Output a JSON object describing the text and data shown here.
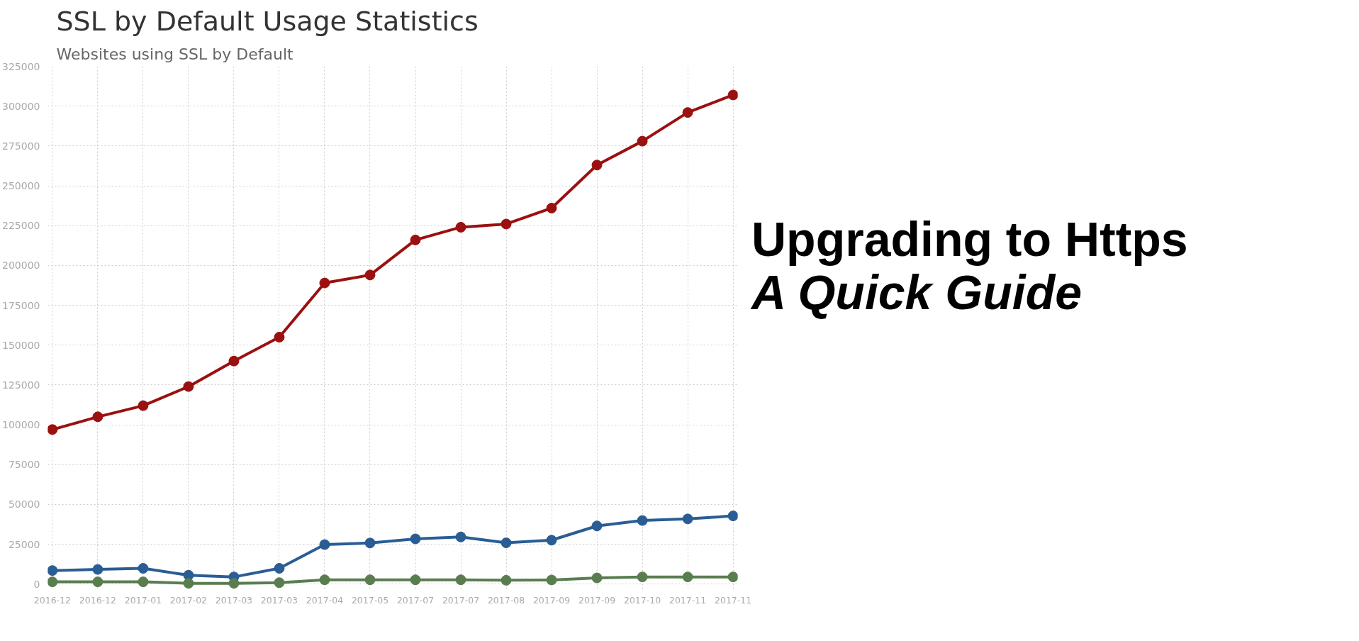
{
  "chart_data": {
    "type": "line",
    "title": "SSL by Default Usage Statistics",
    "subtitle": "Websites using SSL by Default",
    "categories": [
      "2016-12",
      "2016-12",
      "2017-01",
      "2017-02",
      "2017-03",
      "2017-03",
      "2017-04",
      "2017-05",
      "2017-07",
      "2017-07",
      "2017-08",
      "2017-09",
      "2017-09",
      "2017-10",
      "2017-11",
      "2017-11"
    ],
    "series": [
      {
        "color": "#9b1010",
        "values": [
          97000,
          105000,
          112000,
          124000,
          140000,
          155000,
          189000,
          194000,
          216000,
          224000,
          226000,
          236000,
          263000,
          278000,
          296000,
          307000
        ]
      },
      {
        "color": "#2a5d94",
        "values": [
          8500,
          9200,
          9900,
          5600,
          4500,
          9900,
          24800,
          25800,
          28400,
          29600,
          25900,
          27600,
          36500,
          39900,
          40900,
          42800
        ]
      },
      {
        "color": "#5a7d50",
        "values": [
          1400,
          1400,
          1400,
          500,
          500,
          900,
          2700,
          2700,
          2700,
          2700,
          2400,
          2600,
          3900,
          4500,
          4500,
          4500
        ]
      }
    ],
    "ylim": [
      -3000,
      325000
    ],
    "yticks": [
      0,
      25000,
      50000,
      75000,
      100000,
      125000,
      150000,
      175000,
      200000,
      225000,
      250000,
      275000,
      300000,
      325000
    ],
    "grid": true,
    "marker": "circle",
    "line_style": "solid",
    "annotations": [
      "Upgrading to Https",
      "A Quick Guide"
    ]
  }
}
